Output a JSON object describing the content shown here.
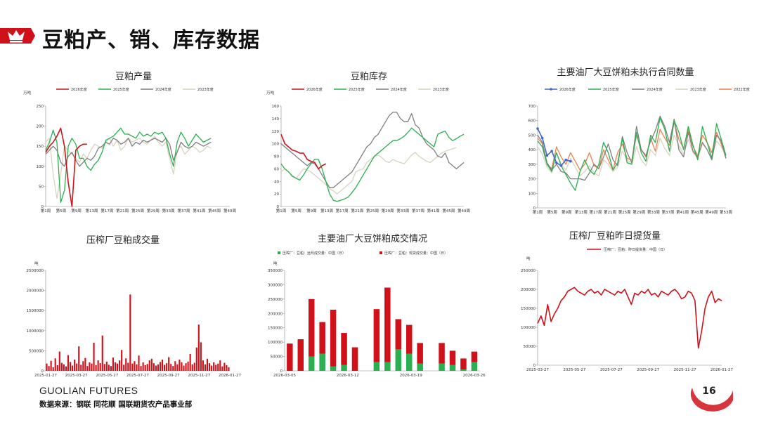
{
  "header": {
    "title": "豆粕产、销、库存数据",
    "accent": "#d0111a"
  },
  "footer": {
    "brand": "GUOLIAN FUTURES",
    "source": "数据来源：钢联 同花顺 国联期货农产品事业部",
    "page_number": "16"
  },
  "colors": {
    "c2026": "#d0111a",
    "c2025": "#2ab050",
    "c2024": "#7f7f7f",
    "c2023": "#d9d3be",
    "c2022": "#ee8050",
    "blue": "#4468c8",
    "green": "#2ab050"
  },
  "chart_data": [
    {
      "type": "line",
      "title": "豆粕产量",
      "ylabel": "万吨",
      "ylim": [
        0,
        250
      ],
      "yticks": [
        "0",
        "50",
        "100",
        "150",
        "200",
        "250"
      ],
      "xticks": [
        "第1周",
        "第5周",
        "第9周",
        "第13周",
        "第17周",
        "第21周",
        "第25周",
        "第29周",
        "第33周",
        "第37周",
        "第41周",
        "第45周",
        "第49周"
      ],
      "series": [
        {
          "name": "2026年度",
          "color": "c2026",
          "values": [
            135,
            150,
            160,
            175,
            195,
            150,
            60,
            0,
            140,
            150,
            155,
            155
          ]
        },
        {
          "name": "2025年度",
          "color": "c2025",
          "values": [
            140,
            160,
            190,
            160,
            10,
            40,
            150,
            170,
            155,
            120,
            120,
            100,
            90,
            105,
            115,
            135,
            165,
            170,
            175,
            185,
            195,
            180,
            180,
            175,
            170,
            185,
            175,
            180,
            175,
            185,
            180,
            185,
            170,
            130,
            100,
            160,
            185,
            170,
            150,
            165,
            180,
            170,
            160,
            165,
            170
          ]
        },
        {
          "name": "2024年度",
          "color": "c2024",
          "values": [
            130,
            140,
            150,
            140,
            110,
            100,
            125,
            135,
            115,
            100,
            110,
            120,
            115,
            125,
            145,
            150,
            160,
            155,
            170,
            165,
            155,
            160,
            170,
            150,
            160,
            155,
            165,
            160,
            165,
            170,
            165,
            160,
            170,
            155,
            115,
            135,
            160,
            150,
            145,
            150,
            160,
            155,
            150,
            155,
            160
          ]
        },
        {
          "name": "2023年度",
          "color": "c2023",
          "values": [
            160,
            170,
            80,
            20,
            80,
            150,
            140,
            130,
            120,
            110,
            130,
            120,
            140,
            155,
            150,
            145,
            160,
            170,
            150,
            165,
            140,
            150,
            170,
            160,
            165,
            170,
            160,
            155,
            165,
            175,
            160,
            150,
            160,
            120,
            80,
            140,
            150,
            130,
            140,
            150,
            145,
            135,
            140,
            150,
            145
          ]
        }
      ]
    },
    {
      "type": "line",
      "title": "豆粕库存",
      "ylabel": "万吨",
      "ylim": [
        0,
        160
      ],
      "yticks": [
        "0",
        "20",
        "40",
        "60",
        "80",
        "100",
        "120",
        "140",
        "160"
      ],
      "xticks": [
        "第1周",
        "第5周",
        "第9周",
        "第13周",
        "第17周",
        "第21周",
        "第25周",
        "第29周",
        "第33周",
        "第37周",
        "第41周",
        "第45周",
        "第49周"
      ],
      "series": [
        {
          "name": "2026年度",
          "color": "c2026",
          "values": [
            115,
            100,
            95,
            90,
            88,
            85,
            85,
            75,
            72,
            70,
            60,
            65,
            68
          ]
        },
        {
          "name": "2025年度",
          "color": "c2025",
          "values": [
            68,
            60,
            55,
            48,
            45,
            42,
            50,
            60,
            68,
            75,
            75,
            60,
            40,
            20,
            10,
            8,
            10,
            12,
            15,
            22,
            30,
            40,
            50,
            60,
            70,
            80,
            85,
            90,
            95,
            100,
            105,
            105,
            108,
            112,
            118,
            125,
            120,
            115,
            110,
            105,
            100,
            95,
            115,
            118,
            120,
            110,
            105,
            108,
            112,
            115
          ]
        },
        {
          "name": "2024年度",
          "color": "c2024",
          "values": [
            100,
            95,
            90,
            85,
            80,
            75,
            70,
            65,
            70,
            68,
            60,
            50,
            40,
            30,
            30,
            35,
            40,
            45,
            50,
            55,
            65,
            75,
            85,
            95,
            100,
            110,
            115,
            125,
            135,
            145,
            150,
            150,
            140,
            135,
            135,
            148,
            130,
            125,
            110,
            100,
            95,
            90,
            80,
            78,
            85,
            70,
            65,
            60,
            65,
            70
          ]
        },
        {
          "name": "2023年度",
          "color": "c2023",
          "values": [
            55,
            60,
            55,
            50,
            45,
            52,
            60,
            58,
            55,
            50,
            45,
            40,
            35,
            28,
            25,
            20,
            25,
            30,
            35,
            40,
            55,
            58,
            60,
            70,
            75,
            80,
            82,
            78,
            72,
            70,
            75,
            72,
            70,
            68,
            75,
            82,
            86,
            80,
            76,
            72,
            70,
            75,
            80,
            85,
            88,
            90,
            92,
            94
          ]
        }
      ]
    },
    {
      "type": "line",
      "title": "主要油厂大豆饼粕未执行合同数量",
      "ylim": [
        0,
        700
      ],
      "yticks": [
        "0",
        "100",
        "200",
        "300",
        "400",
        "500",
        "600",
        "700"
      ],
      "xticks": [
        "第1周",
        "第5周",
        "第9周",
        "第13周",
        "第17周",
        "第21周",
        "第25周",
        "第29周",
        "第33周",
        "第37周",
        "第41周",
        "第45周",
        "第49周",
        "第53周"
      ],
      "series": [
        {
          "name": "2026年度",
          "color": "blue",
          "values": [
            545,
            480,
            360,
            390,
            310,
            290,
            330,
            320
          ]
        },
        {
          "name": "2025年度",
          "color": "c2025",
          "values": [
            460,
            420,
            300,
            250,
            380,
            290,
            230,
            170,
            120,
            250,
            330,
            260,
            230,
            300,
            450,
            380,
            260,
            310,
            480,
            310,
            300,
            520,
            380,
            320,
            500,
            450,
            620,
            540,
            390,
            600,
            520,
            400,
            560,
            430,
            330,
            560,
            450,
            340,
            580,
            470,
            360
          ]
        },
        {
          "name": "2024年度",
          "color": "c2024",
          "values": [
            500,
            450,
            310,
            260,
            300,
            250,
            240,
            200,
            200,
            200,
            190,
            240,
            300,
            270,
            350,
            440,
            330,
            290,
            490,
            380,
            310,
            560,
            400,
            360,
            460,
            530,
            630,
            560,
            450,
            610,
            400,
            350,
            520,
            390,
            350,
            450,
            400,
            330,
            500,
            460,
            340
          ]
        },
        {
          "name": "2023年度",
          "color": "c2023",
          "values": [
            420,
            370,
            280,
            240,
            380,
            300,
            260,
            340,
            280,
            220,
            250,
            290,
            240,
            220,
            330,
            300,
            250,
            280,
            390,
            330,
            300,
            420,
            330,
            290,
            400,
            360,
            480,
            410,
            360,
            500,
            430,
            370,
            470,
            380,
            340,
            440,
            400,
            360,
            460,
            420,
            350
          ]
        },
        {
          "name": "2022年度",
          "color": "c2022",
          "values": [
            480,
            440,
            300,
            270,
            420,
            350,
            300,
            380,
            320,
            260,
            300,
            380,
            290,
            270,
            400,
            330,
            260,
            380,
            440,
            340,
            330,
            500,
            400,
            350,
            480,
            390,
            540,
            480,
            430,
            590,
            470,
            410,
            540,
            420,
            360,
            500,
            450,
            380,
            520,
            440,
            340
          ]
        }
      ]
    },
    {
      "type": "bar",
      "title": "压榨厂豆粕成交量",
      "ylabel": "吨",
      "ylim": [
        0,
        2500000
      ],
      "yticks": [
        "0",
        "500000",
        "1000000",
        "1500000",
        "2000000",
        "2500000"
      ],
      "xticks": [
        "2025-01-27",
        "2025-03-27",
        "2025-05-27",
        "2025-07-27",
        "2025-09-27",
        "2025-11-27",
        "2026-01-27"
      ],
      "series": [
        {
          "name": "",
          "color": "c2026",
          "values": [
            180000,
            120000,
            250000,
            90000,
            310000,
            140000,
            480000,
            200000,
            160000,
            110000,
            390000,
            220000,
            130000,
            280000,
            180000,
            610000,
            150000,
            240000,
            320000,
            120000,
            210000,
            180000,
            700000,
            140000,
            260000,
            190000,
            880000,
            170000,
            230000,
            150000,
            120000,
            330000,
            210000,
            180000,
            260000,
            520000,
            150000,
            310000,
            200000,
            1900000,
            180000,
            240000,
            160000,
            380000,
            120000,
            210000,
            140000,
            170000,
            260000,
            300000,
            190000,
            130000,
            160000,
            220000,
            280000,
            150000,
            190000,
            340000,
            170000,
            120000,
            240000,
            160000,
            280000,
            210000,
            130000,
            190000,
            230000,
            420000,
            160000,
            200000,
            580000,
            1150000,
            710000,
            260000,
            160000,
            300000,
            190000,
            130000,
            210000,
            150000,
            180000,
            260000,
            110000,
            200000,
            140000,
            90000
          ]
        }
      ]
    },
    {
      "type": "bar",
      "title": "主要油厂大豆饼粕成交情况",
      "ylabel": "吨",
      "ylim": [
        0,
        350000
      ],
      "yticks": [
        "0",
        "50000",
        "100000",
        "150000",
        "200000",
        "250000",
        "300000",
        "350000"
      ],
      "xticks": [
        "2026-03-05",
        "2026-03-12",
        "2026-03-19",
        "2026-03-26"
      ],
      "legend": [
        "压榨厂：豆粕：远月成交量：中国（日）",
        "压榨厂：豆粕：现货成交量：中国（日）"
      ],
      "series": [
        {
          "name": "压榨厂：豆粕：远月成交量：中国（日）",
          "color": "green",
          "values": [
            0,
            0,
            50000,
            60000,
            15000,
            20000,
            0,
            0,
            30000,
            30000,
            75000,
            60000,
            25000,
            0,
            25000,
            20000,
            5000,
            30000
          ]
        },
        {
          "name": "压榨厂：豆粕：现货成交量：中国（日）",
          "color": "c2026",
          "values": [
            95000,
            110000,
            200000,
            110000,
            198000,
            112000,
            82000,
            0,
            185000,
            260000,
            105000,
            100000,
            72000,
            0,
            72000,
            50000,
            38000,
            37000
          ]
        }
      ]
    },
    {
      "type": "line",
      "title": "压榨厂豆粕昨日提货量",
      "ylabel": "吨",
      "ylim": [
        0,
        250000
      ],
      "yticks": [
        "0",
        "50000",
        "100000",
        "150000",
        "200000",
        "250000"
      ],
      "xticks": [
        "2025-03-27",
        "2025-05-27",
        "2025-07-27",
        "2025-09-27",
        "2025-11-27",
        "2026-01-27"
      ],
      "legend": [
        "压榨厂：豆粕：昨日提货量：中国（日）"
      ],
      "series": [
        {
          "name": "压榨厂：豆粕：昨日提货量：中国（日）",
          "color": "c2026",
          "values": [
            110000,
            130000,
            105000,
            160000,
            115000,
            135000,
            150000,
            170000,
            180000,
            195000,
            200000,
            205000,
            195000,
            190000,
            185000,
            195000,
            200000,
            190000,
            195000,
            185000,
            200000,
            195000,
            190000,
            185000,
            195000,
            190000,
            200000,
            180000,
            160000,
            190000,
            185000,
            195000,
            190000,
            200000,
            185000,
            190000,
            180000,
            195000,
            190000,
            185000,
            195000,
            200000,
            190000,
            175000,
            180000,
            195000,
            190000,
            170000,
            45000,
            90000,
            150000,
            180000,
            195000,
            165000,
            175000,
            170000
          ]
        }
      ]
    }
  ]
}
